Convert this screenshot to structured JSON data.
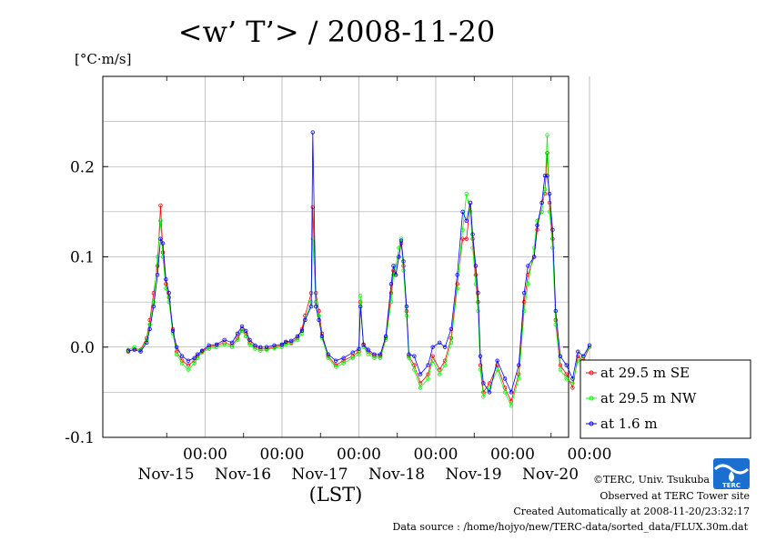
{
  "chart_data": {
    "type": "line",
    "title": "<w’ T’> / 2008-11-20",
    "ylabel": "[°C·m/s]",
    "xlabel": "(LST)",
    "ylim": [
      -0.1,
      0.3
    ],
    "xlim": [
      0,
      6
    ],
    "y_ticks": [
      {
        "value": -0.1,
        "label": "-0.1"
      },
      {
        "value": 0.0,
        "label": "0.0"
      },
      {
        "value": 0.1,
        "label": "0.1"
      },
      {
        "value": 0.2,
        "label": "0.2"
      }
    ],
    "x_ticks": [
      {
        "value": 1,
        "time": "00:00",
        "day": "Nov-15"
      },
      {
        "value": 2,
        "time": "00:00",
        "day": "Nov-16"
      },
      {
        "value": 3,
        "time": "00:00",
        "day": "Nov-17"
      },
      {
        "value": 4,
        "time": "00:00",
        "day": "Nov-18"
      },
      {
        "value": 5,
        "time": "00:00",
        "day": "Nov-19"
      },
      {
        "value": 6,
        "time": "00:00",
        "day": "Nov-20"
      }
    ],
    "grid": true,
    "legend_position": "bottom-right",
    "series": [
      {
        "name": "at 29.5 m SE",
        "color": "#ff0000",
        "x": [
          0.0,
          0.08,
          0.16,
          0.24,
          0.28,
          0.33,
          0.38,
          0.42,
          0.45,
          0.49,
          0.53,
          0.58,
          0.63,
          0.7,
          0.78,
          0.86,
          0.9,
          0.96,
          1.05,
          1.15,
          1.25,
          1.35,
          1.42,
          1.48,
          1.53,
          1.58,
          1.65,
          1.72,
          1.8,
          1.9,
          2.0,
          2.05,
          2.12,
          2.2,
          2.26,
          2.3,
          2.38,
          2.4,
          2.44,
          2.48,
          2.52,
          2.6,
          2.7,
          2.8,
          2.92,
          3.0,
          3.02,
          3.06,
          3.12,
          3.2,
          3.28,
          3.35,
          3.42,
          3.45,
          3.48,
          3.52,
          3.55,
          3.58,
          3.62,
          3.65,
          3.72,
          3.8,
          3.9,
          3.96,
          4.05,
          4.12,
          4.2,
          4.28,
          4.35,
          4.4,
          4.45,
          4.48,
          4.52,
          4.55,
          4.58,
          4.62,
          4.7,
          4.8,
          4.9,
          4.98,
          5.08,
          5.15,
          5.2,
          5.28,
          5.32,
          5.38,
          5.42,
          5.45,
          5.48,
          5.52,
          5.56,
          5.62,
          5.7,
          5.78,
          5.85,
          5.92,
          6.0
        ],
        "y": [
          -0.005,
          -0.002,
          -0.003,
          0.01,
          0.03,
          0.06,
          0.09,
          0.157,
          0.105,
          0.07,
          0.055,
          0.02,
          -0.005,
          -0.015,
          -0.02,
          -0.015,
          -0.01,
          -0.005,
          0.0,
          0.002,
          0.005,
          0.002,
          0.01,
          0.02,
          0.015,
          0.005,
          0.0,
          -0.002,
          -0.002,
          0.0,
          0.002,
          0.005,
          0.005,
          0.01,
          0.02,
          0.035,
          0.06,
          0.155,
          0.06,
          0.04,
          0.015,
          -0.01,
          -0.02,
          -0.015,
          -0.01,
          -0.005,
          0.05,
          0.002,
          -0.005,
          -0.01,
          -0.01,
          0.01,
          0.06,
          0.085,
          0.08,
          0.1,
          0.115,
          0.09,
          0.04,
          -0.01,
          -0.02,
          -0.04,
          -0.03,
          -0.01,
          -0.025,
          -0.015,
          0.01,
          0.07,
          0.12,
          0.12,
          0.16,
          0.12,
          0.08,
          0.05,
          -0.02,
          -0.05,
          -0.04,
          -0.02,
          -0.045,
          -0.06,
          -0.03,
          0.05,
          0.08,
          0.1,
          0.13,
          0.16,
          0.17,
          0.215,
          0.16,
          0.12,
          0.03,
          -0.02,
          -0.03,
          -0.045,
          -0.01,
          -0.015,
          0.0
        ]
      },
      {
        "name": "at 29.5 m NW",
        "color": "#00ff00",
        "x": [
          0.0,
          0.08,
          0.16,
          0.24,
          0.28,
          0.33,
          0.38,
          0.42,
          0.45,
          0.49,
          0.53,
          0.58,
          0.63,
          0.7,
          0.78,
          0.86,
          0.9,
          0.96,
          1.05,
          1.15,
          1.25,
          1.35,
          1.42,
          1.48,
          1.53,
          1.58,
          1.65,
          1.72,
          1.8,
          1.9,
          2.0,
          2.05,
          2.12,
          2.2,
          2.26,
          2.3,
          2.38,
          2.4,
          2.44,
          2.48,
          2.52,
          2.6,
          2.7,
          2.8,
          2.92,
          3.0,
          3.02,
          3.06,
          3.12,
          3.2,
          3.28,
          3.35,
          3.42,
          3.45,
          3.48,
          3.52,
          3.55,
          3.58,
          3.62,
          3.65,
          3.72,
          3.8,
          3.9,
          3.96,
          4.05,
          4.12,
          4.2,
          4.28,
          4.35,
          4.4,
          4.45,
          4.48,
          4.52,
          4.55,
          4.58,
          4.62,
          4.7,
          4.8,
          4.9,
          4.98,
          5.08,
          5.15,
          5.2,
          5.28,
          5.32,
          5.38,
          5.42,
          5.45,
          5.48,
          5.52,
          5.56,
          5.62,
          5.7,
          5.78,
          5.85,
          5.92,
          6.0
        ],
        "y": [
          -0.003,
          0.0,
          -0.004,
          0.008,
          0.025,
          0.05,
          0.1,
          0.14,
          0.1,
          0.065,
          0.05,
          0.015,
          -0.008,
          -0.018,
          -0.025,
          -0.018,
          -0.012,
          -0.006,
          -0.002,
          0.0,
          0.003,
          0.0,
          0.008,
          0.018,
          0.012,
          0.003,
          -0.002,
          -0.004,
          -0.003,
          -0.001,
          0.0,
          0.003,
          0.004,
          0.008,
          0.015,
          0.03,
          0.05,
          0.12,
          0.05,
          0.035,
          0.01,
          -0.012,
          -0.022,
          -0.018,
          -0.012,
          -0.008,
          0.057,
          0.0,
          -0.008,
          -0.012,
          -0.012,
          0.008,
          0.05,
          0.08,
          0.09,
          0.11,
          0.12,
          0.085,
          0.035,
          -0.012,
          -0.025,
          -0.045,
          -0.035,
          -0.015,
          -0.03,
          -0.02,
          0.005,
          0.065,
          0.13,
          0.17,
          0.15,
          0.11,
          0.07,
          0.04,
          -0.025,
          -0.055,
          -0.045,
          -0.025,
          -0.05,
          -0.065,
          -0.035,
          0.04,
          0.07,
          0.11,
          0.14,
          0.15,
          0.175,
          0.235,
          0.15,
          0.11,
          0.025,
          -0.025,
          -0.035,
          -0.04,
          -0.015,
          -0.01,
          0.0
        ]
      },
      {
        "name": "at 1.6 m",
        "color": "#0000ff",
        "x": [
          0.0,
          0.08,
          0.16,
          0.24,
          0.28,
          0.33,
          0.38,
          0.42,
          0.45,
          0.49,
          0.53,
          0.58,
          0.63,
          0.7,
          0.78,
          0.86,
          0.9,
          0.96,
          1.05,
          1.15,
          1.25,
          1.35,
          1.42,
          1.48,
          1.53,
          1.58,
          1.65,
          1.72,
          1.8,
          1.9,
          2.0,
          2.05,
          2.12,
          2.2,
          2.26,
          2.3,
          2.38,
          2.4,
          2.44,
          2.48,
          2.52,
          2.6,
          2.7,
          2.8,
          2.92,
          3.0,
          3.02,
          3.06,
          3.12,
          3.2,
          3.28,
          3.35,
          3.42,
          3.45,
          3.48,
          3.52,
          3.55,
          3.58,
          3.62,
          3.65,
          3.72,
          3.8,
          3.9,
          3.96,
          4.05,
          4.12,
          4.2,
          4.28,
          4.35,
          4.4,
          4.45,
          4.48,
          4.52,
          4.55,
          4.58,
          4.62,
          4.7,
          4.8,
          4.9,
          4.98,
          5.08,
          5.15,
          5.2,
          5.28,
          5.32,
          5.38,
          5.42,
          5.45,
          5.48,
          5.52,
          5.56,
          5.62,
          5.7,
          5.78,
          5.85,
          5.92,
          6.0
        ],
        "y": [
          -0.004,
          -0.003,
          -0.005,
          0.005,
          0.02,
          0.045,
          0.08,
          0.12,
          0.115,
          0.075,
          0.06,
          0.018,
          0.0,
          -0.01,
          -0.015,
          -0.012,
          -0.008,
          -0.004,
          0.002,
          0.003,
          0.008,
          0.005,
          0.015,
          0.023,
          0.018,
          0.008,
          0.002,
          0.0,
          0.0,
          0.002,
          0.003,
          0.006,
          0.007,
          0.012,
          0.018,
          0.03,
          0.045,
          0.238,
          0.045,
          0.03,
          0.012,
          -0.008,
          -0.015,
          -0.012,
          -0.006,
          -0.002,
          0.045,
          0.003,
          -0.003,
          -0.008,
          -0.008,
          0.012,
          0.07,
          0.09,
          0.08,
          0.1,
          0.118,
          0.095,
          0.045,
          -0.008,
          -0.01,
          -0.03,
          -0.02,
          0.0,
          0.005,
          0.0,
          0.02,
          0.08,
          0.15,
          0.14,
          0.16,
          0.125,
          0.09,
          0.06,
          -0.01,
          -0.04,
          -0.05,
          -0.015,
          -0.035,
          -0.05,
          -0.02,
          0.06,
          0.09,
          0.1,
          0.135,
          0.16,
          0.19,
          0.19,
          0.17,
          0.13,
          0.04,
          -0.01,
          -0.02,
          -0.035,
          -0.005,
          -0.01,
          0.002
        ]
      }
    ]
  },
  "footer": {
    "credit": "©TERC, Univ. Tsukuba",
    "observed": "Observed at TERC Tower site",
    "created": "Created Automatically at 2008-11-20/23:32:17",
    "source": "Data source : /home/hojyo/new/TERC-data/sorted_data/FLUX.30m.dat"
  },
  "logo": {
    "text": "TERC",
    "color": "#1a6fd1"
  }
}
